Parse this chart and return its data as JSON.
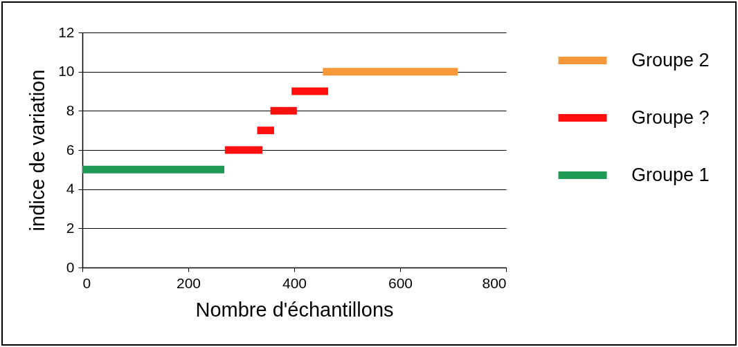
{
  "chart_data": {
    "type": "line",
    "xlabel": "Nombre d'échantillons",
    "ylabel": "indice de variation",
    "xlim": [
      0,
      800
    ],
    "xticks": [
      0,
      200,
      400,
      600,
      800
    ],
    "ylim": [
      0,
      12
    ],
    "yticks": [
      0,
      2,
      4,
      6,
      8,
      10,
      12
    ],
    "grid": "y",
    "legend": "right",
    "marker": "none",
    "line_style": "solid",
    "series": [
      {
        "name": "Groupe 2",
        "color": "#f7993a",
        "x": [
          454,
          709
        ],
        "values": [
          10,
          10
        ]
      },
      {
        "name": "Groupe ?",
        "color": "#ff1010",
        "x": [
          269,
          340,
          null,
          330,
          362,
          null,
          355,
          405,
          null,
          395,
          464
        ],
        "values": [
          6,
          6,
          null,
          7,
          7,
          null,
          8,
          8,
          null,
          9,
          9
        ]
      },
      {
        "name": "Groupe 1",
        "color": "#1e9a56",
        "x": [
          0,
          268
        ],
        "values": [
          5,
          5
        ]
      }
    ]
  }
}
